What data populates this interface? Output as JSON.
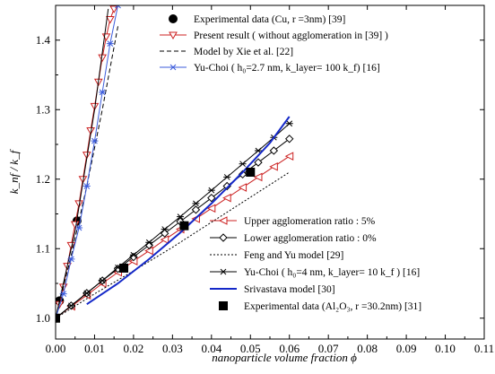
{
  "chart_data": {
    "type": "line",
    "xlabel": "nanoparticle volume fraction  ϕ",
    "ylabel": "k_nf / k_f",
    "xlim": [
      0.0,
      0.11
    ],
    "ylim": [
      0.97,
      1.45
    ],
    "x_ticks": [
      "0.00",
      "0.01",
      "0.02",
      "0.03",
      "0.04",
      "0.05",
      "0.06",
      "0.07",
      "0.08",
      "0.09",
      "0.10",
      "0.11"
    ],
    "y_ticks": [
      "1.0",
      "1.1",
      "1.2",
      "1.3",
      "1.4"
    ],
    "legend_top": {
      "placement": "top-left",
      "entries": [
        {
          "label": "Experimental data (Cu, r =3nm) [39]",
          "series": "cu_exp"
        },
        {
          "label": "Present result ( without agglomeration in [39] )",
          "series": "present_cu"
        },
        {
          "label": "Model by Xie et al. [22]",
          "series": "xie"
        },
        {
          "label": "Yu-Choi ( h₀=2.7 nm, k_layer= 100 k_f) [16]",
          "series": "yuchoi_cu"
        }
      ]
    },
    "legend_bottom": {
      "placement": "bottom-right",
      "entries": [
        {
          "label": "Upper agglomeration ratio : 5%",
          "series": "upper"
        },
        {
          "label": "Lower agglomeration ratio : 0%",
          "series": "lower"
        },
        {
          "label": "Feng and Yu model [29]",
          "series": "feng"
        },
        {
          "label": "Yu-Choi ( h₀=4 nm, k_layer= 10 k_f ) [16]",
          "series": "yuchoi_al"
        },
        {
          "label": "Srivastava model [30]",
          "series": "srivastava"
        },
        {
          "label": "Experimental data (Al₂O₃, r =30.2nm) [31]",
          "series": "al_exp"
        }
      ]
    },
    "series": [
      {
        "id": "cu_exp",
        "style": "markers",
        "marker": "filled-circle",
        "color": "#000000",
        "x": [
          0.0,
          0.001,
          0.0055
        ],
        "y": [
          1.0,
          1.025,
          1.14
        ]
      },
      {
        "id": "present_cu",
        "style": "line",
        "marker": "open-triangle-down",
        "color": "#cc2222",
        "x": [
          0.0,
          0.001,
          0.002,
          0.003,
          0.004,
          0.005,
          0.006,
          0.007,
          0.008,
          0.009,
          0.01,
          0.011,
          0.012,
          0.013,
          0.014,
          0.015
        ],
        "y": [
          1.0,
          1.02,
          1.045,
          1.075,
          1.105,
          1.135,
          1.165,
          1.2,
          1.235,
          1.27,
          1.305,
          1.34,
          1.375,
          1.405,
          1.43,
          1.445
        ]
      },
      {
        "id": "present_cu_black",
        "style": "line",
        "color": "#000000",
        "x": [
          0.0,
          0.005,
          0.01,
          0.0135
        ],
        "y": [
          1.0,
          1.125,
          1.3,
          1.445
        ]
      },
      {
        "id": "xie",
        "style": "dashed",
        "color": "#000000",
        "x": [
          0.0,
          0.004,
          0.008,
          0.012,
          0.016
        ],
        "y": [
          1.0,
          1.09,
          1.19,
          1.3,
          1.42
        ]
      },
      {
        "id": "yuchoi_cu",
        "style": "line",
        "marker": "asterisk",
        "color": "#3b5bdb",
        "x": [
          0.0,
          0.002,
          0.004,
          0.006,
          0.008,
          0.01,
          0.012,
          0.014,
          0.016
        ],
        "y": [
          1.0,
          1.035,
          1.085,
          1.13,
          1.19,
          1.255,
          1.325,
          1.395,
          1.45
        ]
      },
      {
        "id": "upper",
        "style": "line",
        "marker": "open-triangle-left",
        "color": "#cc2222",
        "x": [
          0.0,
          0.004,
          0.008,
          0.012,
          0.016,
          0.02,
          0.024,
          0.028,
          0.032,
          0.036,
          0.04,
          0.044,
          0.048,
          0.052,
          0.056,
          0.06
        ],
        "y": [
          1.0,
          1.017,
          1.033,
          1.05,
          1.066,
          1.082,
          1.097,
          1.113,
          1.128,
          1.143,
          1.158,
          1.173,
          1.188,
          1.203,
          1.218,
          1.233
        ]
      },
      {
        "id": "lower",
        "style": "line",
        "marker": "open-diamond",
        "color": "#000000",
        "x": [
          0.0,
          0.004,
          0.008,
          0.012,
          0.016,
          0.02,
          0.024,
          0.028,
          0.032,
          0.036,
          0.04,
          0.044,
          0.048,
          0.052,
          0.056,
          0.06
        ],
        "y": [
          1.0,
          1.018,
          1.036,
          1.054,
          1.071,
          1.088,
          1.105,
          1.122,
          1.139,
          1.156,
          1.173,
          1.19,
          1.207,
          1.224,
          1.241,
          1.258
        ]
      },
      {
        "id": "feng",
        "style": "dotted",
        "color": "#000000",
        "x": [
          0.0,
          0.01,
          0.02,
          0.03,
          0.04,
          0.05,
          0.06
        ],
        "y": [
          1.0,
          1.035,
          1.068,
          1.102,
          1.138,
          1.174,
          1.21
        ]
      },
      {
        "id": "yuchoi_al",
        "style": "line",
        "marker": "asterisk",
        "color": "#000000",
        "x": [
          0.0,
          0.004,
          0.008,
          0.012,
          0.016,
          0.02,
          0.024,
          0.028,
          0.032,
          0.036,
          0.04,
          0.044,
          0.048,
          0.052,
          0.056,
          0.06
        ],
        "y": [
          1.0,
          1.018,
          1.036,
          1.054,
          1.073,
          1.091,
          1.109,
          1.128,
          1.146,
          1.165,
          1.184,
          1.203,
          1.222,
          1.241,
          1.26,
          1.28
        ]
      },
      {
        "id": "srivastava",
        "style": "thick-line",
        "color": "#1428c8",
        "x": [
          0.008,
          0.016,
          0.024,
          0.032,
          0.04,
          0.048,
          0.055,
          0.06
        ],
        "y": [
          1.02,
          1.05,
          1.085,
          1.123,
          1.165,
          1.21,
          1.252,
          1.29
        ]
      },
      {
        "id": "al_exp",
        "style": "markers",
        "marker": "filled-square",
        "color": "#000000",
        "x": [
          0.0,
          0.0175,
          0.033,
          0.05
        ],
        "y": [
          1.0,
          1.072,
          1.133,
          1.21
        ]
      }
    ]
  }
}
